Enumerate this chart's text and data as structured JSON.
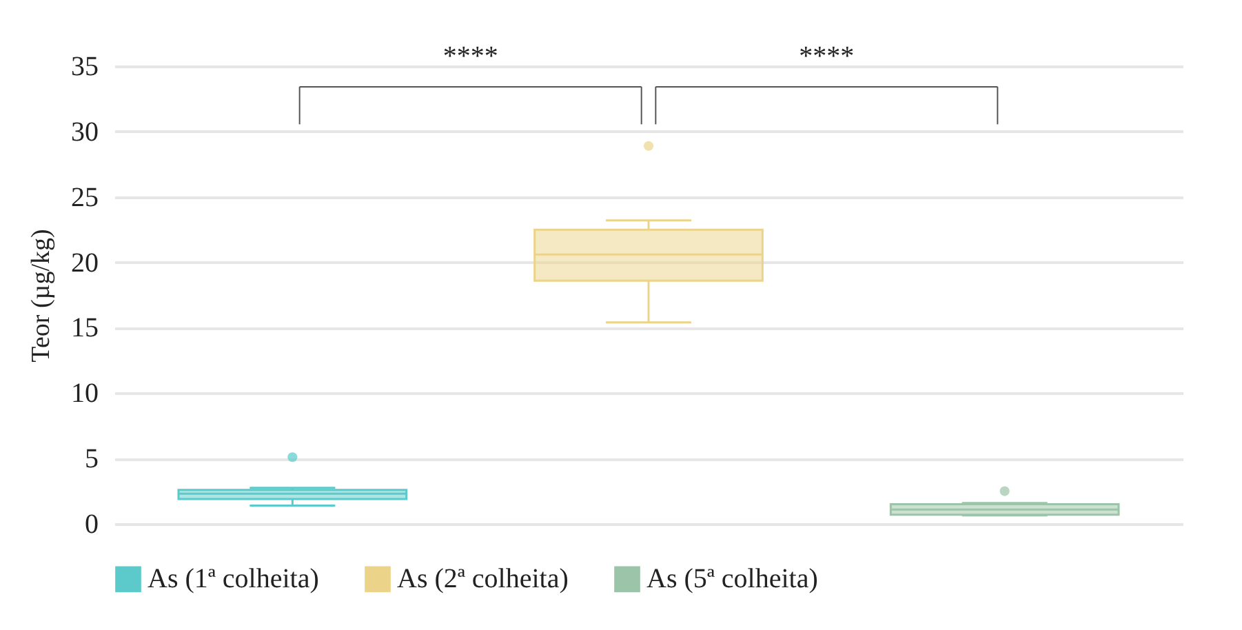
{
  "chart_data": {
    "type": "box",
    "ylabel": "Teor (µg/kg)",
    "categories": [
      null,
      null,
      null
    ],
    "ylim": [
      0,
      35
    ],
    "yticks": [
      0,
      5,
      10,
      15,
      20,
      25,
      30,
      35
    ],
    "grid": "y",
    "legend": "bottom",
    "tick_labels": "y",
    "series": [
      {
        "name": "As (1ª colheita)",
        "color": "#5ccaca",
        "boxes": [
          {
            "low": 1.4,
            "q1": 1.9,
            "median": 2.3,
            "q3": 2.6,
            "high": 2.75,
            "outliers": [
              5.1
            ]
          },
          null,
          null
        ]
      },
      {
        "name": "As (2ª colheita)",
        "color": "#ecd38a",
        "boxes": [
          null,
          {
            "low": 15.4,
            "q1": 18.6,
            "median": 20.6,
            "q3": 22.5,
            "high": 23.2,
            "outliers": [
              28.9
            ]
          },
          null
        ]
      },
      {
        "name": "As (5ª colheita)",
        "color": "#9cc4a8",
        "boxes": [
          null,
          null,
          {
            "low": 0.65,
            "q1": 0.7,
            "median": 1.1,
            "q3": 1.5,
            "high": 1.6,
            "outliers": [
              2.5
            ]
          }
        ]
      }
    ],
    "annotations": [
      "****",
      "****"
    ]
  }
}
